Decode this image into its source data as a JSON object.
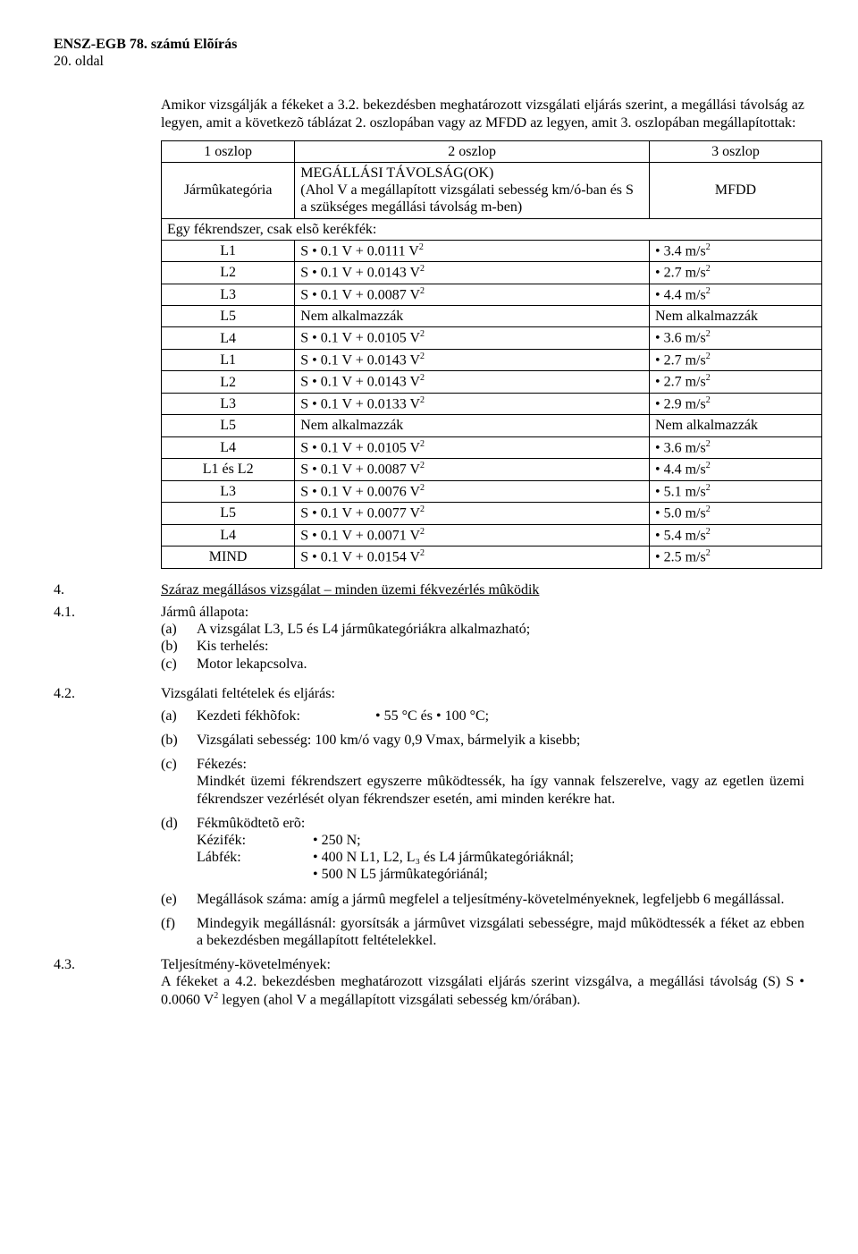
{
  "header": {
    "title": "ENSZ-EGB 78. számú Elõírás",
    "page": "20. oldal"
  },
  "intro": "Amikor vizsgálják a fékeket a 3.2. bekezdésben meghatározott vizsgálati eljárás szerint, a megállási távolság az legyen, amit a következõ táblázat 2. oszlopában vagy az MFDD az legyen, amit 3. oszlopában megállapítottak:",
  "table": {
    "h1": "1 oszlop",
    "h2": "2 oszlop",
    "h3": "3 oszlop",
    "r2_c1": "Jármûkategória",
    "r2_c2": "MEGÁLLÁSI TÁVOLSÁG(OK)\n(Ahol V a megállapított vizsgálati sebesség km/ó-ban és S a szükséges megállási távolság m-ben)",
    "r2_c3": "MFDD",
    "r3_span": "Egy fékrendszer, csak elsõ kerékfék:",
    "rows": [
      {
        "c1": "L1",
        "c2": "S • 0.1 V + 0.0111 V",
        "e2": "2",
        "c3": "• 3.4 m/s",
        "e3": "2"
      },
      {
        "c1": "L2",
        "c2": "S • 0.1 V + 0.0143 V",
        "e2": "2",
        "c3": "• 2.7 m/s",
        "e3": "2"
      },
      {
        "c1": "L3",
        "c2": "S • 0.1 V + 0.0087 V",
        "e2": "2",
        "c3": "• 4.4 m/s",
        "e3": "2"
      },
      {
        "c1": "L5",
        "c2": "Nem alkalmazzák",
        "e2": "",
        "c3": "Nem alkalmazzák",
        "e3": ""
      },
      {
        "c1": "L4",
        "c2": "S • 0.1 V + 0.0105 V",
        "e2": "2",
        "c3": "• 3.6 m/s",
        "e3": "2"
      },
      {
        "c1": "L1",
        "c2": "S • 0.1 V + 0.0143 V",
        "e2": "2",
        "c3": "• 2.7 m/s",
        "e3": "2"
      },
      {
        "c1": "L2",
        "c2": "S • 0.1 V + 0.0143 V",
        "e2": "2",
        "c3": "• 2.7 m/s",
        "e3": "2"
      },
      {
        "c1": "L3",
        "c2": "S • 0.1 V + 0.0133 V",
        "e2": "2",
        "c3": "• 2.9 m/s",
        "e3": "2"
      },
      {
        "c1": "L5",
        "c2": "Nem alkalmazzák",
        "e2": "",
        "c3": "Nem alkalmazzák",
        "e3": ""
      },
      {
        "c1": "L4",
        "c2": "S • 0.1 V + 0.0105 V",
        "e2": "2",
        "c3": "• 3.6 m/s",
        "e3": "2"
      },
      {
        "c1": "L1 és L2",
        "c2": "S • 0.1 V + 0.0087 V",
        "e2": "2",
        "c3": "• 4.4 m/s",
        "e3": "2"
      },
      {
        "c1": "L3",
        "c2": "S • 0.1 V + 0.0076 V",
        "e2": "2",
        "c3": "• 5.1 m/s",
        "e3": "2"
      },
      {
        "c1": "L5",
        "c2": "S • 0.1 V + 0.0077 V",
        "e2": "2",
        "c3": "• 5.0 m/s",
        "e3": "2"
      },
      {
        "c1": "L4",
        "c2": "S • 0.1 V + 0.0071 V",
        "e2": "2",
        "c3": "• 5.4 m/s",
        "e3": "2"
      },
      {
        "c1": "MIND",
        "c2": "S • 0.1 V + 0.0154 V",
        "e2": "2",
        "c3": "• 2.5 m/s",
        "e3": "2"
      }
    ]
  },
  "s4": {
    "num": "4.",
    "title": "Száraz megállásos vizsgálat – minden üzemi fékvezérlés mûködik"
  },
  "s41": {
    "num": "4.1.",
    "title": "Jármû állapota:",
    "a_lbl": "(a)",
    "a": "A vizsgálat L3, L5 és L4 jármûkategóriákra alkalmazható;",
    "b_lbl": "(b)",
    "b": "Kis terhelés:",
    "c_lbl": "(c)",
    "c": "Motor lekapcsolva."
  },
  "s42": {
    "num": "4.2.",
    "title": "Vizsgálati feltételek és eljárás:",
    "a_lbl": "(a)",
    "a_k": "Kezdeti fékhõfok:",
    "a_v": "• 55 °C és • 100 °C;",
    "b_lbl": "(b)",
    "b": "Vizsgálati sebesség: 100 km/ó vagy 0,9 Vmax, bármelyik a kisebb;",
    "c_lbl": "(c)",
    "c_t": "Fékezés:",
    "c_body": "Mindkét üzemi fékrendszert egyszerre mûködtessék, ha így vannak felszerelve, vagy az egetlen üzemi fékrendszer vezérlését olyan fékrendszer esetén, ami minden kerékre hat.",
    "d_lbl": "(d)",
    "d_t": "Fékmûködtetõ erõ:",
    "d_k1": "Kézifék:",
    "d_v1": "• 250 N;",
    "d_k2": "Lábfék:",
    "d_v2a": "• 400 N L1, L2, L₃ és L4 jármûkategóriáknál;",
    "d_v2b": "• 500 N L5 jármûkategóriánál;",
    "e_lbl": "(e)",
    "e": "Megállások száma: amíg a jármû megfelel a teljesítmény-követelményeknek, legfeljebb 6 megállással.",
    "f_lbl": "(f)",
    "f": "Mindegyik megállásnál: gyorsítsák a jármûvet vizsgálati sebességre, majd mûködtessék a féket az ebben a bekezdésben megállapított feltételekkel."
  },
  "s43": {
    "num": "4.3.",
    "title": "Teljesítmény-követelmények:",
    "body_pre": "A fékeket a 4.2. bekezdésben meghatározott vizsgálati eljárás szerint vizsgálva, a megállási távolság (S) S • 0.0060 V",
    "body_exp": "2",
    "body_post": " legyen (ahol V a megállapított vizsgálati sebesség km/órában)."
  }
}
